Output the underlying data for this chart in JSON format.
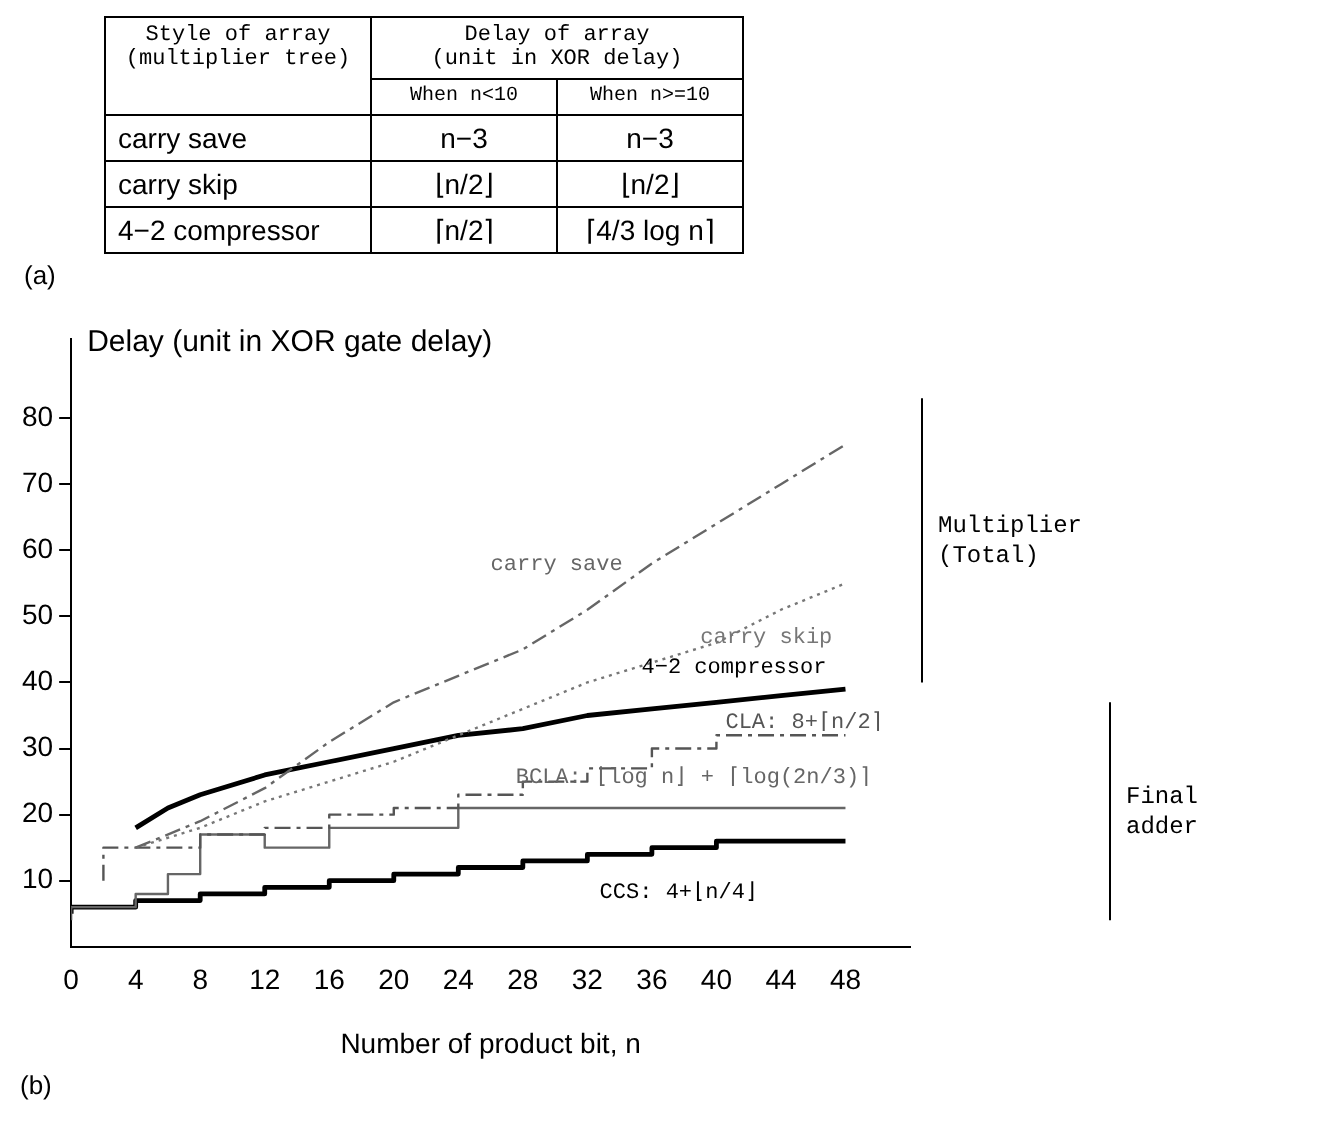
{
  "chart_data": [
    {
      "type": "other",
      "annotations": [
        "Style of array\n(multiplier tree)",
        "Delay of array\n(unit in XOR delay)",
        "When n<10",
        "When n>=10",
        "carry save",
        "n−3",
        "n−3",
        "carry skip",
        "⌊n/2⌋",
        "⌊n/2⌋",
        "4−2 compressor",
        "⌈n/2⌉",
        "⌈4/3 log n⌉",
        "(a)"
      ]
    },
    {
      "type": "line",
      "xlabel": "Number of product bit, n",
      "ylabel": "Delay (unit in XOR gate delay)",
      "xlim": [
        0,
        52
      ],
      "ylim": [
        0,
        92
      ],
      "xticks": [
        0,
        4,
        8,
        12,
        16,
        20,
        24,
        28,
        32,
        36,
        40,
        44,
        48
      ],
      "yticks": [
        10,
        20,
        30,
        40,
        50,
        60,
        70,
        80
      ],
      "grid": false,
      "legend": false,
      "marker": "none",
      "annotations": [
        "Multiplier\n(Total)",
        "Final\nadder",
        "(b)"
      ],
      "series": [
        {
          "name": "carry save",
          "color": "#666666",
          "line_style": "dashed",
          "x": [
            4,
            8,
            12,
            16,
            20,
            24,
            28,
            32,
            36,
            40,
            44,
            48
          ],
          "values": [
            15,
            19,
            24,
            31,
            37,
            41,
            45,
            51,
            58,
            64,
            70,
            76
          ]
        },
        {
          "name": "carry skip",
          "color": "#777777",
          "line_style": "dotted",
          "x": [
            4,
            8,
            12,
            16,
            20,
            24,
            28,
            32,
            36,
            40,
            44,
            48
          ],
          "values": [
            15,
            18,
            22,
            25,
            28,
            32,
            36,
            40,
            43,
            46,
            51,
            55
          ]
        },
        {
          "name": "4−2 compressor",
          "color": "#000000",
          "line_style": "solid",
          "x": [
            4,
            6,
            8,
            12,
            16,
            20,
            24,
            28,
            32,
            36,
            40,
            44,
            48
          ],
          "values": [
            18,
            21,
            23,
            26,
            28,
            30,
            32,
            33,
            35,
            36,
            37,
            38,
            39
          ]
        },
        {
          "name": "CLA: 8+⌈n/2⌉",
          "type": "step",
          "color": "#555555",
          "line_style": "dashed",
          "x": [
            2,
            4,
            8,
            12,
            16,
            20,
            24,
            28,
            32,
            36,
            40,
            44,
            48
          ],
          "values": [
            10,
            15,
            15,
            17,
            18,
            20,
            21,
            23,
            25,
            27,
            30,
            32,
            32
          ]
        },
        {
          "name": "BCLA: ⌊log n⌋ + ⌈log(2n/3)⌉",
          "type": "step",
          "color": "#666666",
          "line_style": "solid",
          "x": [
            0,
            4,
            6,
            8,
            12,
            16,
            24,
            32,
            48
          ],
          "values": [
            4,
            6,
            8,
            11,
            17,
            15,
            18,
            21,
            21
          ]
        },
        {
          "name": "CCS: 4+⌊n/4⌋",
          "type": "step",
          "color": "#000000",
          "line_style": "solid",
          "x": [
            0,
            4,
            8,
            12,
            16,
            20,
            24,
            28,
            32,
            36,
            40,
            44,
            48
          ],
          "values": [
            5,
            6,
            7,
            8,
            9,
            10,
            11,
            12,
            13,
            14,
            15,
            16,
            16
          ]
        }
      ]
    }
  ]
}
